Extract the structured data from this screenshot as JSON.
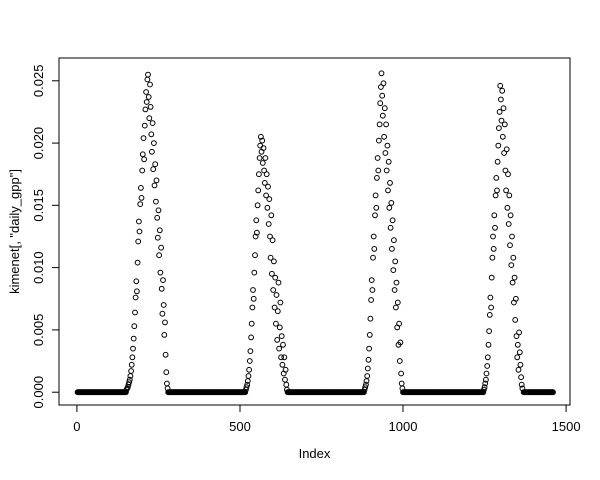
{
  "figure": {
    "background": "#ffffff",
    "foreground": "#000000"
  },
  "chart_data": {
    "type": "scatter",
    "title": "",
    "xlabel": "Index",
    "ylabel": "kimenet[, \"daily_gpp\"]",
    "series_name": "daily_gpp",
    "grid": false,
    "legend": "none",
    "marker": {
      "shape": "open-circle",
      "radius": 2.4,
      "color": "#000000"
    },
    "xlim": [
      -55,
      1512
    ],
    "ylim": [
      -0.00103,
      0.02683
    ],
    "x_ticks": {
      "values": [
        0,
        500,
        1000,
        1500
      ],
      "labels": [
        "0",
        "500",
        "1000",
        "1500"
      ]
    },
    "y_ticks": {
      "values": [
        0,
        0.005,
        0.01,
        0.015,
        0.02,
        0.025
      ],
      "labels": [
        "0.000",
        "0.005",
        "0.010",
        "0.015",
        "0.020",
        "0.025"
      ]
    },
    "zero_runs": {
      "step": 2,
      "y_value": 0,
      "ranges": [
        [
          2,
          150
        ],
        [
          280,
          516
        ],
        [
          646,
          880
        ],
        [
          1000,
          1246
        ],
        [
          1370,
          1460
        ]
      ]
    },
    "season_points": [
      [
        [
          152,
          0.0002
        ],
        [
          154,
          0.0003
        ],
        [
          156,
          0.0004
        ],
        [
          158,
          0.0006
        ],
        [
          160,
          0.0008
        ],
        [
          162,
          0.001
        ],
        [
          164,
          0.0013
        ],
        [
          166,
          0.0017
        ],
        [
          168,
          0.0022
        ],
        [
          170,
          0.0028
        ],
        [
          172,
          0.0035
        ],
        [
          174,
          0.0043
        ],
        [
          176,
          0.0053
        ],
        [
          178,
          0.0064
        ],
        [
          180,
          0.0076
        ],
        [
          182,
          0.0089
        ],
        [
          184,
          0.0081
        ],
        [
          186,
          0.0104
        ],
        [
          188,
          0.0121
        ],
        [
          190,
          0.0137
        ],
        [
          192,
          0.0129
        ],
        [
          194,
          0.0151
        ],
        [
          196,
          0.0164
        ],
        [
          198,
          0.0156
        ],
        [
          200,
          0.0178
        ],
        [
          202,
          0.0191
        ],
        [
          204,
          0.0204
        ],
        [
          206,
          0.0187
        ],
        [
          208,
          0.0214
        ],
        [
          210,
          0.0227
        ],
        [
          212,
          0.0241
        ],
        [
          214,
          0.0233
        ],
        [
          216,
          0.0251
        ],
        [
          218,
          0.0255
        ],
        [
          220,
          0.0237
        ],
        [
          222,
          0.022
        ],
        [
          224,
          0.0247
        ],
        [
          226,
          0.0229
        ],
        [
          228,
          0.0207
        ],
        [
          230,
          0.0193
        ],
        [
          232,
          0.0216
        ],
        [
          234,
          0.0179
        ],
        [
          236,
          0.02
        ],
        [
          238,
          0.0166
        ],
        [
          240,
          0.0183
        ],
        [
          242,
          0.0153
        ],
        [
          244,
          0.017
        ],
        [
          246,
          0.014
        ],
        [
          248,
          0.0124
        ],
        [
          250,
          0.0146
        ],
        [
          252,
          0.011
        ],
        [
          254,
          0.013
        ],
        [
          256,
          0.0096
        ],
        [
          258,
          0.0116
        ],
        [
          260,
          0.0083
        ],
        [
          262,
          0.0063
        ],
        [
          264,
          0.009
        ],
        [
          266,
          0.007
        ],
        [
          268,
          0.0046
        ],
        [
          270,
          0.0056
        ],
        [
          272,
          0.003
        ],
        [
          274,
          0.0016
        ],
        [
          276,
          0.0007
        ],
        [
          278,
          0.0003
        ]
      ],
      [
        [
          518,
          0.0002
        ],
        [
          520,
          0.0004
        ],
        [
          522,
          0.0006
        ],
        [
          524,
          0.0009
        ],
        [
          526,
          0.0013
        ],
        [
          528,
          0.0018
        ],
        [
          530,
          0.0025
        ],
        [
          532,
          0.0033
        ],
        [
          534,
          0.0044
        ],
        [
          536,
          0.0055
        ],
        [
          538,
          0.0068
        ],
        [
          540,
          0.0082
        ],
        [
          542,
          0.0075
        ],
        [
          544,
          0.0096
        ],
        [
          546,
          0.011
        ],
        [
          548,
          0.0125
        ],
        [
          550,
          0.0138
        ],
        [
          552,
          0.0128
        ],
        [
          554,
          0.015
        ],
        [
          556,
          0.0162
        ],
        [
          558,
          0.0175
        ],
        [
          560,
          0.0188
        ],
        [
          562,
          0.0198
        ],
        [
          564,
          0.0205
        ],
        [
          566,
          0.0193
        ],
        [
          568,
          0.0202
        ],
        [
          570,
          0.0184
        ],
        [
          572,
          0.0196
        ],
        [
          574,
          0.0178
        ],
        [
          576,
          0.0168
        ],
        [
          578,
          0.0188
        ],
        [
          580,
          0.0158
        ],
        [
          582,
          0.0175
        ],
        [
          584,
          0.0148
        ],
        [
          586,
          0.0165
        ],
        [
          588,
          0.0135
        ],
        [
          590,
          0.0155
        ],
        [
          592,
          0.0125
        ],
        [
          594,
          0.0108
        ],
        [
          596,
          0.0142
        ],
        [
          598,
          0.0095
        ],
        [
          600,
          0.0122
        ],
        [
          602,
          0.0082
        ],
        [
          604,
          0.0105
        ],
        [
          606,
          0.0068
        ],
        [
          608,
          0.0092
        ],
        [
          610,
          0.0055
        ],
        [
          612,
          0.0078
        ],
        [
          614,
          0.0042
        ],
        [
          616,
          0.0065
        ],
        [
          618,
          0.0088
        ],
        [
          620,
          0.0035
        ],
        [
          622,
          0.0052
        ],
        [
          624,
          0.0072
        ],
        [
          626,
          0.0028
        ],
        [
          628,
          0.0045
        ],
        [
          630,
          0.0022
        ],
        [
          632,
          0.0038
        ],
        [
          634,
          0.0015
        ],
        [
          636,
          0.0028
        ],
        [
          638,
          0.001
        ],
        [
          640,
          0.0018
        ],
        [
          642,
          0.0006
        ],
        [
          644,
          0.0002
        ]
      ],
      [
        [
          882,
          0.0002
        ],
        [
          884,
          0.0004
        ],
        [
          886,
          0.0006
        ],
        [
          888,
          0.0009
        ],
        [
          890,
          0.0013
        ],
        [
          892,
          0.0019
        ],
        [
          894,
          0.0026
        ],
        [
          896,
          0.0035
        ],
        [
          898,
          0.0046
        ],
        [
          900,
          0.0059
        ],
        [
          902,
          0.0074
        ],
        [
          904,
          0.009
        ],
        [
          906,
          0.0082
        ],
        [
          908,
          0.0108
        ],
        [
          910,
          0.0125
        ],
        [
          912,
          0.0115
        ],
        [
          914,
          0.0142
        ],
        [
          916,
          0.0158
        ],
        [
          918,
          0.0148
        ],
        [
          920,
          0.0172
        ],
        [
          922,
          0.0188
        ],
        [
          924,
          0.0178
        ],
        [
          926,
          0.0202
        ],
        [
          928,
          0.0215
        ],
        [
          930,
          0.0232
        ],
        [
          932,
          0.0245
        ],
        [
          934,
          0.0256
        ],
        [
          936,
          0.0238
        ],
        [
          938,
          0.0222
        ],
        [
          940,
          0.0248
        ],
        [
          942,
          0.0205
        ],
        [
          944,
          0.0228
        ],
        [
          946,
          0.0192
        ],
        [
          948,
          0.0215
        ],
        [
          950,
          0.0178
        ],
        [
          952,
          0.0198
        ],
        [
          954,
          0.0162
        ],
        [
          956,
          0.0185
        ],
        [
          958,
          0.0148
        ],
        [
          960,
          0.0168
        ],
        [
          962,
          0.0132
        ],
        [
          964,
          0.0152
        ],
        [
          966,
          0.0115
        ],
        [
          968,
          0.0138
        ],
        [
          970,
          0.0098
        ],
        [
          972,
          0.0122
        ],
        [
          974,
          0.0082
        ],
        [
          976,
          0.0105
        ],
        [
          978,
          0.0068
        ],
        [
          980,
          0.0088
        ],
        [
          982,
          0.0052
        ],
        [
          984,
          0.0072
        ],
        [
          986,
          0.0038
        ],
        [
          988,
          0.0055
        ],
        [
          990,
          0.0025
        ],
        [
          992,
          0.004
        ],
        [
          994,
          0.0015
        ],
        [
          996,
          0.0007
        ],
        [
          998,
          0.0003
        ]
      ],
      [
        [
          1248,
          0.0002
        ],
        [
          1250,
          0.0004
        ],
        [
          1252,
          0.0007
        ],
        [
          1254,
          0.001
        ],
        [
          1256,
          0.0015
        ],
        [
          1258,
          0.0021
        ],
        [
          1260,
          0.0028
        ],
        [
          1262,
          0.0038
        ],
        [
          1264,
          0.0049
        ],
        [
          1266,
          0.0062
        ],
        [
          1268,
          0.0076
        ],
        [
          1270,
          0.0068
        ],
        [
          1272,
          0.0092
        ],
        [
          1274,
          0.0108
        ],
        [
          1276,
          0.0125
        ],
        [
          1278,
          0.0115
        ],
        [
          1280,
          0.0142
        ],
        [
          1282,
          0.0132
        ],
        [
          1284,
          0.0158
        ],
        [
          1286,
          0.0172
        ],
        [
          1288,
          0.0162
        ],
        [
          1290,
          0.0185
        ],
        [
          1292,
          0.0198
        ],
        [
          1294,
          0.0212
        ],
        [
          1296,
          0.0225
        ],
        [
          1298,
          0.0246
        ],
        [
          1300,
          0.0235
        ],
        [
          1302,
          0.0218
        ],
        [
          1304,
          0.0242
        ],
        [
          1306,
          0.0205
        ],
        [
          1308,
          0.0228
        ],
        [
          1310,
          0.0192
        ],
        [
          1312,
          0.0215
        ],
        [
          1314,
          0.0178
        ],
        [
          1316,
          0.0162
        ],
        [
          1318,
          0.0195
        ],
        [
          1320,
          0.0148
        ],
        [
          1322,
          0.0175
        ],
        [
          1324,
          0.0135
        ],
        [
          1326,
          0.0158
        ],
        [
          1328,
          0.0118
        ],
        [
          1330,
          0.0142
        ],
        [
          1332,
          0.0102
        ],
        [
          1334,
          0.0125
        ],
        [
          1336,
          0.0088
        ],
        [
          1338,
          0.0108
        ],
        [
          1340,
          0.0072
        ],
        [
          1342,
          0.0092
        ],
        [
          1344,
          0.0058
        ],
        [
          1346,
          0.0075
        ],
        [
          1348,
          0.0045
        ],
        [
          1350,
          0.0028
        ],
        [
          1352,
          0.0038
        ],
        [
          1354,
          0.0018
        ],
        [
          1356,
          0.0048
        ],
        [
          1358,
          0.0032
        ],
        [
          1360,
          0.0022
        ],
        [
          1362,
          0.0012
        ],
        [
          1364,
          0.0006
        ],
        [
          1366,
          0.0003
        ]
      ]
    ]
  }
}
